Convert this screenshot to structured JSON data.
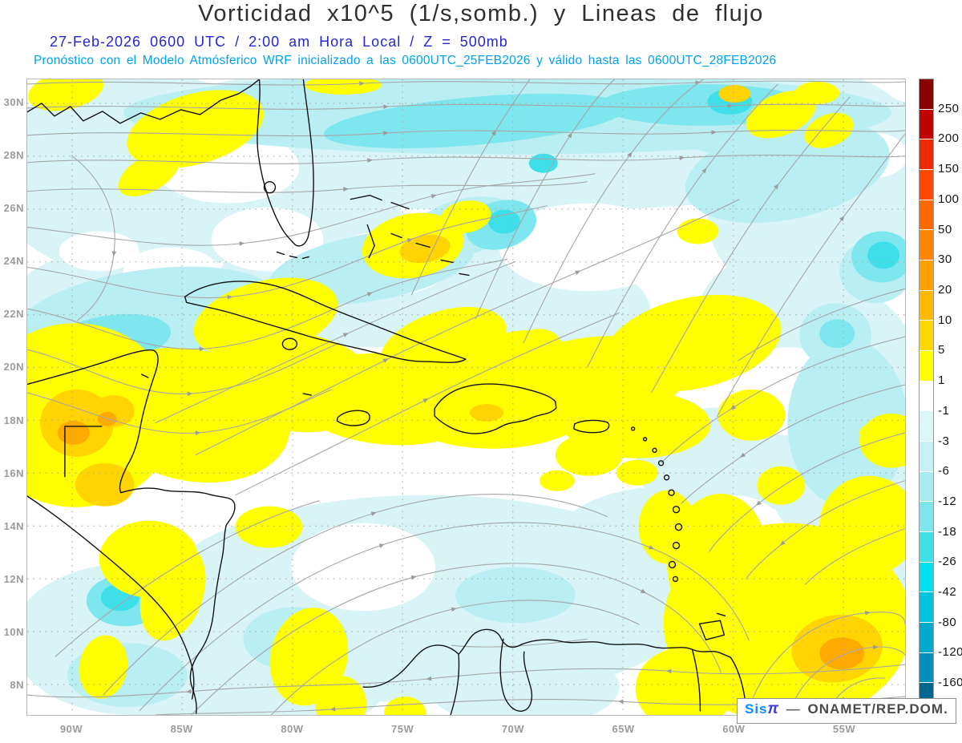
{
  "header": {
    "title": "Vorticidad x10^5 (1/s,somb.) y Lineas de flujo",
    "line2": "27-Feb-2026   0600 UTC / 2:00 am Hora Local / Z = 500mb",
    "line3": "Pronóstico con el Modelo Atmósferico WRF inicializado a las 0600UTC_25FEB2026 y válido hasta las   0600UTC_28FEB2026",
    "colors": {
      "title": "#2f2f2f",
      "line2": "#2626d2",
      "line3": "#00a2f3"
    }
  },
  "map": {
    "lat_labels": [
      "30N",
      "28N",
      "26N",
      "24N",
      "22N",
      "20N",
      "18N",
      "16N",
      "14N",
      "12N",
      "10N",
      "8N"
    ],
    "lon_labels": [
      "90W",
      "85W",
      "80W",
      "75W",
      "70W",
      "65W",
      "60W",
      "55W"
    ],
    "axis_label_color": "#9b9b9b",
    "streamline_color": "#a6a6a6",
    "coastline_color": "#121212",
    "shading_palette": {
      "positive": [
        "#ffff00",
        "#ffd400",
        "#ffaa00"
      ],
      "negative": [
        "#d8f4f7",
        "#b9eef3",
        "#7de6ef",
        "#3fdfea"
      ]
    },
    "watermark": {
      "brand": "Sis",
      "pi": "π",
      "separator": "—",
      "org": "ONAMET/REP.DOM."
    }
  },
  "colorbar": {
    "levels": [
      "250",
      "200",
      "150",
      "100",
      "50",
      "30",
      "20",
      "10",
      "5",
      "1",
      "-1",
      "-3",
      "-6",
      "-12",
      "-18",
      "-26",
      "-42",
      "-80",
      "-120",
      "-160"
    ],
    "segment_colors": [
      "#8b0000",
      "#c10000",
      "#ef2a00",
      "#ff4800",
      "#ff6a00",
      "#ff8500",
      "#ffa000",
      "#ffb900",
      "#ffd800",
      "#ffff00",
      "#ffffff",
      "#dcf6f8",
      "#c6f1f4",
      "#a9ebef",
      "#7fe5ec",
      "#3fdfe9",
      "#00e0ee",
      "#00c4de",
      "#00aacc",
      "#0090bc",
      "#00688e"
    ]
  }
}
